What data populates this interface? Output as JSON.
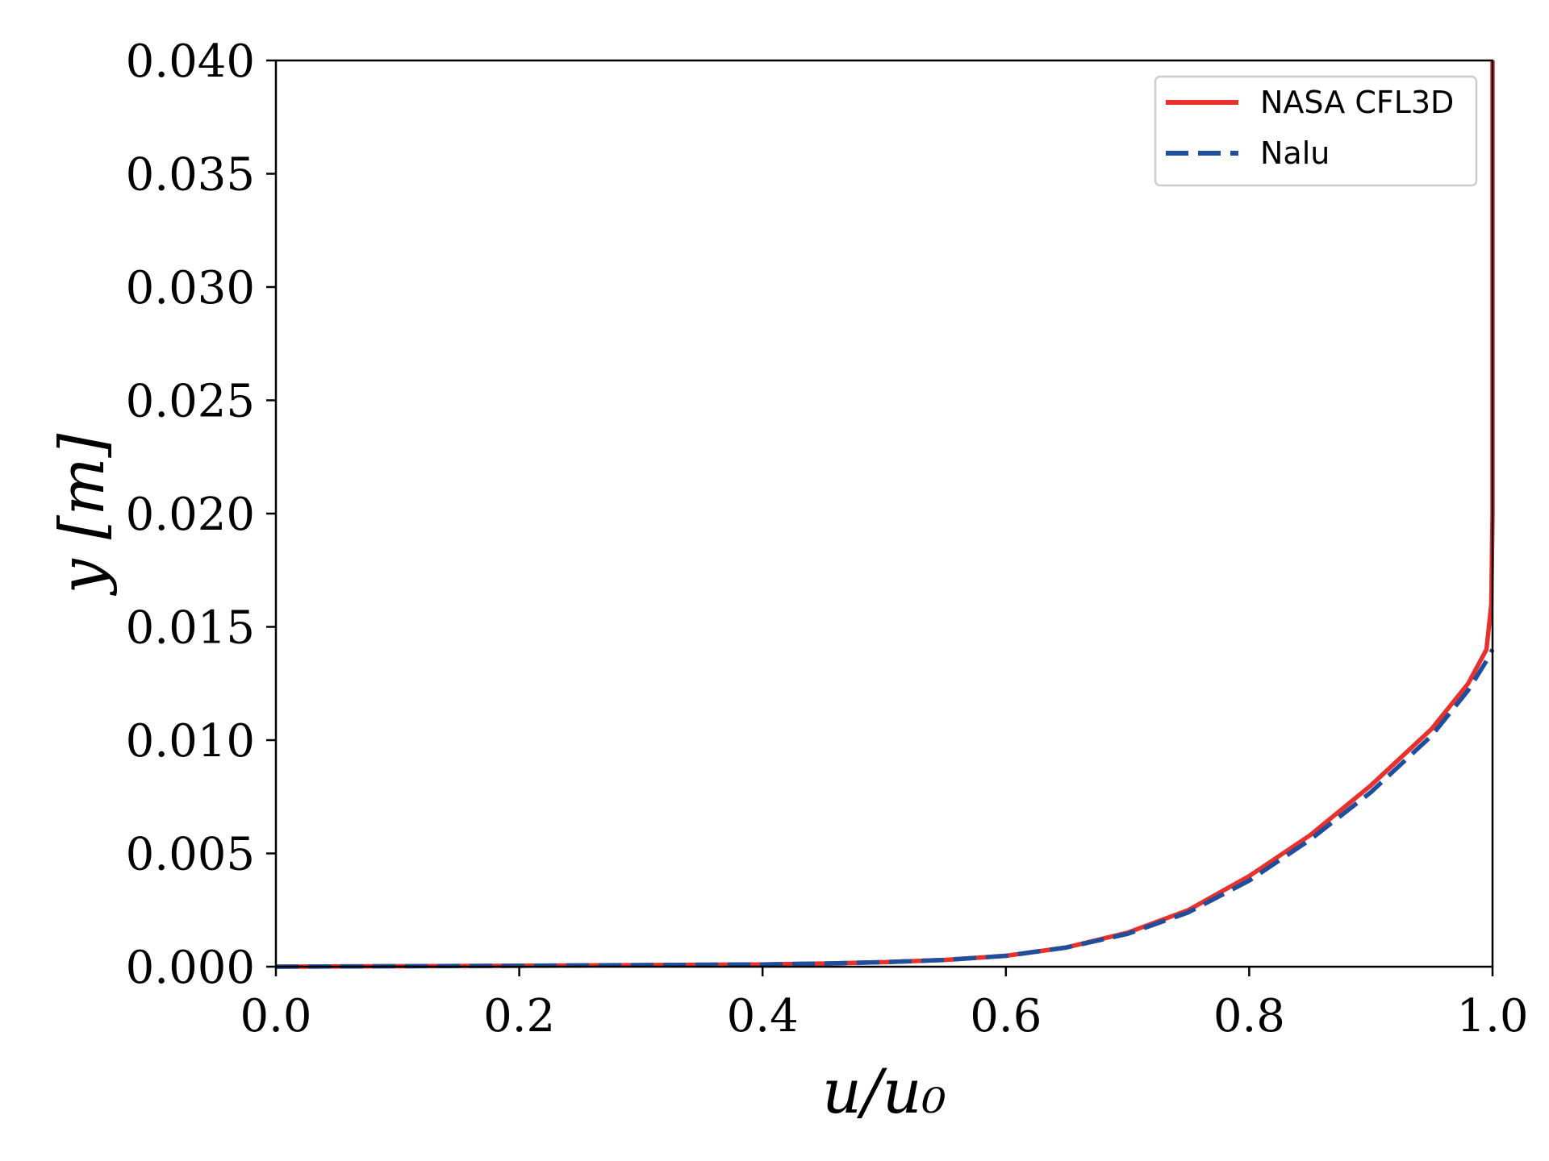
{
  "chart_data": {
    "type": "line",
    "xlabel": "u/u₀",
    "ylabel": "y [m]",
    "xlim": [
      0.0,
      1.0
    ],
    "ylim": [
      0.0,
      0.04
    ],
    "x_ticks": [
      "0.0",
      "0.2",
      "0.4",
      "0.6",
      "0.8",
      "1.0"
    ],
    "y_ticks": [
      "0.000",
      "0.005",
      "0.010",
      "0.015",
      "0.020",
      "0.025",
      "0.030",
      "0.035",
      "0.040"
    ],
    "grid": false,
    "legend_position": "top-right",
    "series": [
      {
        "name": "NASA CFL3D",
        "color": "#e8302c",
        "style": "solid",
        "points": [
          [
            0.0,
            0.0
          ],
          [
            0.1,
            2e-05
          ],
          [
            0.2,
            4e-05
          ],
          [
            0.3,
            7e-05
          ],
          [
            0.4,
            0.0001
          ],
          [
            0.45,
            0.00014
          ],
          [
            0.5,
            0.0002
          ],
          [
            0.55,
            0.0003
          ],
          [
            0.6,
            0.00048
          ],
          [
            0.65,
            0.00085
          ],
          [
            0.7,
            0.0015
          ],
          [
            0.75,
            0.0025
          ],
          [
            0.8,
            0.004
          ],
          [
            0.85,
            0.0058
          ],
          [
            0.9,
            0.008
          ],
          [
            0.95,
            0.0105
          ],
          [
            0.98,
            0.0125
          ],
          [
            0.995,
            0.014
          ],
          [
            0.999,
            0.016
          ],
          [
            1.0,
            0.02
          ],
          [
            1.0,
            0.04
          ]
        ]
      },
      {
        "name": "Nalu",
        "color": "#1f4e9c",
        "style": "dashed",
        "points": [
          [
            0.0,
            0.0
          ],
          [
            0.1,
            2e-05
          ],
          [
            0.2,
            4e-05
          ],
          [
            0.3,
            7e-05
          ],
          [
            0.4,
            0.0001
          ],
          [
            0.45,
            0.00014
          ],
          [
            0.5,
            0.0002
          ],
          [
            0.55,
            0.0003
          ],
          [
            0.6,
            0.00048
          ],
          [
            0.65,
            0.00085
          ],
          [
            0.7,
            0.00145
          ],
          [
            0.75,
            0.0024
          ],
          [
            0.8,
            0.0038
          ],
          [
            0.85,
            0.0056
          ],
          [
            0.9,
            0.0077
          ],
          [
            0.95,
            0.0102
          ],
          [
            0.98,
            0.0122
          ],
          [
            0.995,
            0.0135
          ],
          [
            1.0,
            0.014
          ]
        ]
      }
    ]
  }
}
